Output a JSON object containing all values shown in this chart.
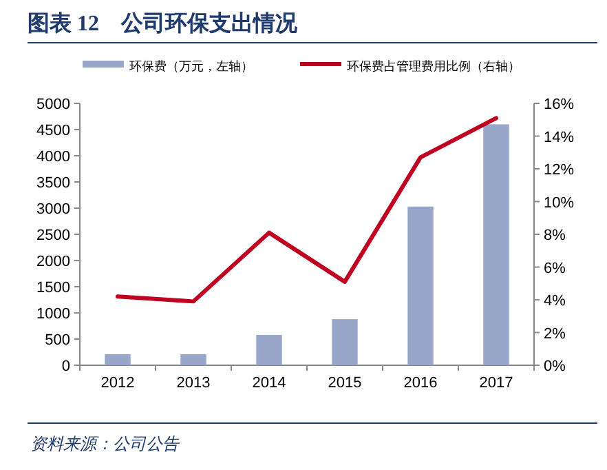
{
  "chart_data": {
    "type": "bar",
    "title": "图表 12　公司环保支出情况",
    "categories": [
      "2012",
      "2013",
      "2014",
      "2015",
      "2016",
      "2017"
    ],
    "series": [
      {
        "name": "环保费（万元，左轴）",
        "color": "#98a6c9",
        "values": [
          210,
          210,
          580,
          880,
          3030,
          4600
        ]
      },
      {
        "name": "环保费占管理费用比例（右轴）",
        "type": "line",
        "axis": "y2",
        "color": "#c00020",
        "values": [
          4.2,
          3.9,
          8.1,
          5.1,
          12.7,
          15.1
        ]
      }
    ],
    "ylim": [
      0,
      5000
    ],
    "yticks": [
      0,
      500,
      1000,
      1500,
      2000,
      2500,
      3000,
      3500,
      4000,
      4500,
      5000
    ],
    "y2lim": [
      0,
      16
    ],
    "y2ticks": [
      {
        "value": 0,
        "label": "0%"
      },
      {
        "value": 2,
        "label": "2%"
      },
      {
        "value": 4,
        "label": "4%"
      },
      {
        "value": 6,
        "label": "6%"
      },
      {
        "value": 8,
        "label": "8%"
      },
      {
        "value": 10,
        "label": "10%"
      },
      {
        "value": 12,
        "label": "12%"
      },
      {
        "value": 14,
        "label": "14%"
      },
      {
        "value": 16,
        "label": "16%"
      }
    ],
    "legend": "top",
    "annotations": [
      "资料来源：公司公告"
    ]
  }
}
